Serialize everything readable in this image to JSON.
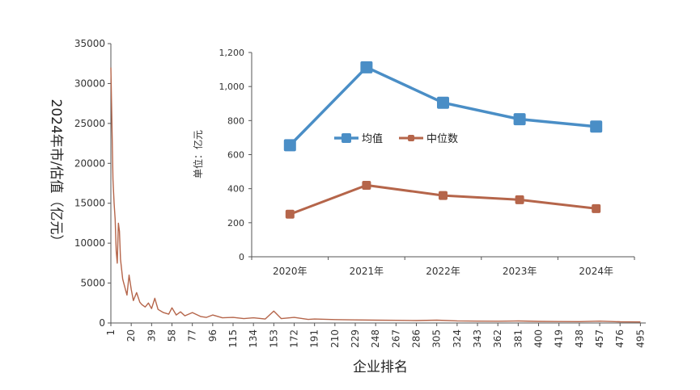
{
  "chart_data": [
    {
      "type": "line",
      "xlabel": "企业排名",
      "ylabel": "2024年市/估值（亿元）",
      "xlim": [
        1,
        500
      ],
      "ylim": [
        0,
        35000
      ],
      "yticks": [
        0,
        5000,
        10000,
        15000,
        20000,
        25000,
        30000,
        35000
      ],
      "xticks": [
        1,
        20,
        39,
        58,
        77,
        96,
        115,
        134,
        153,
        172,
        191,
        210,
        229,
        248,
        267,
        286,
        305,
        324,
        343,
        362,
        381,
        400,
        419,
        438,
        457,
        476,
        495
      ],
      "series": [
        {
          "color": "#b5654a",
          "x": [
            1,
            2,
            3,
            4,
            5,
            6,
            7,
            8,
            9,
            10,
            12,
            14,
            16,
            18,
            20,
            22,
            25,
            28,
            30,
            33,
            36,
            39,
            42,
            45,
            50,
            55,
            58,
            62,
            66,
            70,
            77,
            85,
            90,
            96,
            105,
            115,
            125,
            134,
            145,
            153,
            160,
            172,
            185,
            191,
            210,
            229,
            248,
            267,
            286,
            305,
            324,
            343,
            362,
            381,
            400,
            419,
            438,
            457,
            476,
            495
          ],
          "y": [
            32000,
            25000,
            18000,
            15000,
            13000,
            9000,
            7500,
            12500,
            11500,
            8000,
            5500,
            4500,
            3500,
            6000,
            4200,
            2800,
            3800,
            2600,
            2300,
            2000,
            2500,
            1800,
            3100,
            1700,
            1300,
            1100,
            1900,
            1000,
            1400,
            900,
            1300,
            800,
            700,
            1000,
            650,
            700,
            550,
            650,
            500,
            1500,
            550,
            700,
            450,
            500,
            420,
            380,
            350,
            330,
            300,
            350,
            260,
            230,
            220,
            250,
            200,
            180,
            170,
            230,
            150,
            130
          ]
        }
      ]
    },
    {
      "type": "line",
      "ylabel": "单位：亿元",
      "categories": [
        "2020年",
        "2021年",
        "2022年",
        "2023年",
        "2024年"
      ],
      "ylim": [
        0,
        1200
      ],
      "yticks": [
        "0",
        "200",
        "400",
        "600",
        "800",
        "1,000",
        "1,200"
      ],
      "legend_position": "middle-left",
      "series": [
        {
          "name": "均值",
          "color": "#4a8ec6",
          "values": [
            655,
            1113,
            905,
            808,
            765
          ]
        },
        {
          "name": "中位数",
          "color": "#b5654a",
          "values": [
            250,
            420,
            360,
            335,
            283
          ]
        }
      ]
    }
  ]
}
